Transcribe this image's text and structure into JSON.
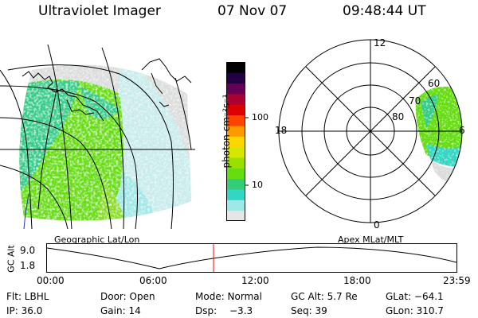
{
  "header": {
    "instrument": "Ultraviolet Imager",
    "date": "07 Nov 07",
    "time": "09:48:44 UT"
  },
  "colorbar": {
    "unit_label": "photon cm⁻²s⁻¹",
    "ticks": [
      {
        "label": "100",
        "value": 100
      },
      {
        "label": "10",
        "value": 10
      }
    ],
    "scale": "log",
    "colors": [
      "#e6e6e6",
      "#9ee8e8",
      "#33d6c2",
      "#33cc77",
      "#66dd11",
      "#99e000",
      "#d6e600",
      "#ffd700",
      "#ff9900",
      "#ff4400",
      "#dd0000",
      "#aa0033",
      "#660055",
      "#220044",
      "#000000"
    ]
  },
  "left_panel": {
    "label": "Geographic Lat/Lon"
  },
  "right_panel": {
    "label": "Apex MLat/MLT",
    "mlt_labels": {
      "top": "12",
      "left": "18",
      "right": "6",
      "bottom": "0"
    },
    "lat_labels": [
      "60",
      "70",
      "80"
    ]
  },
  "altitude_plot": {
    "ylabel": "GC Alt",
    "yticks": [
      "9.0",
      "1.8"
    ],
    "xticks": [
      "00:00",
      "06:00",
      "12:00",
      "18:00",
      "23:59"
    ],
    "marker_color": "#ff0000"
  },
  "info": {
    "filter": "Flt: LBHL",
    "door": "Door: Open",
    "mode": "Mode: Normal",
    "gc_alt": "GC Alt: 5.7 Re",
    "glat": "GLat: −64.1",
    "ip": "IP: 36.0",
    "gain": "Gain: 14",
    "dsp_label": "Dsp:",
    "dsp_value": "−3.3",
    "seq": "Seq: 39",
    "glon": "GLon: 310.7"
  }
}
